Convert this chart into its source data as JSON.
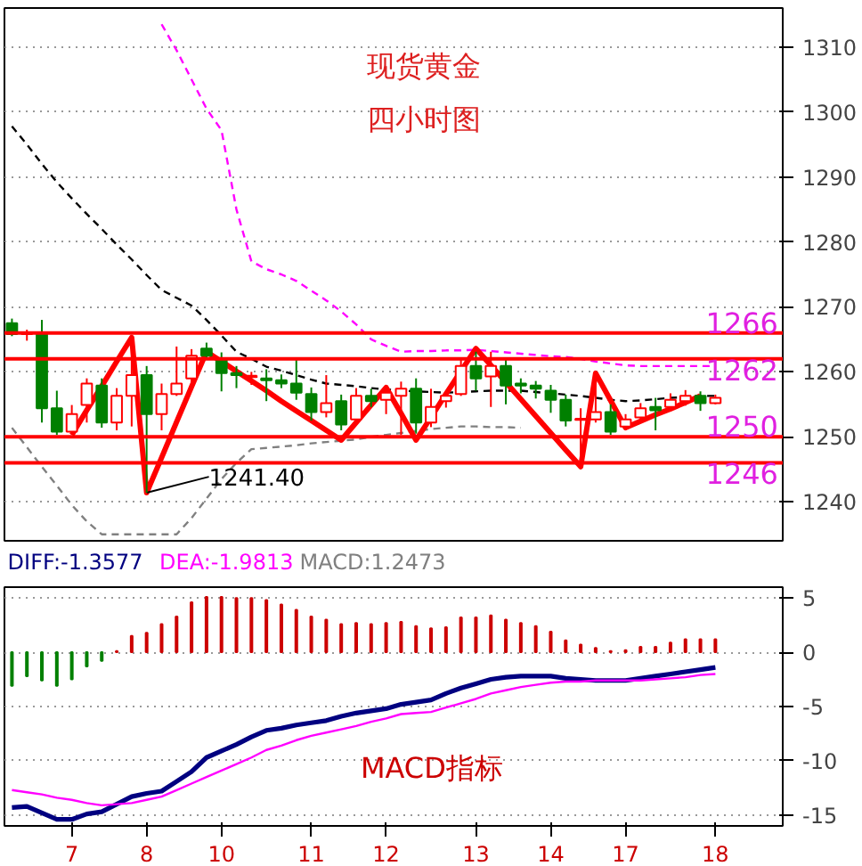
{
  "chart_data": [
    {
      "type": "candlestick",
      "title": "现货黄金",
      "subtitle": "四小时图",
      "categories": [
        null,
        null,
        null,
        null,
        "7",
        null,
        null,
        null,
        null,
        "8",
        null,
        null,
        null,
        null,
        "10",
        null,
        null,
        null,
        null,
        null,
        "11",
        null,
        null,
        null,
        null,
        "12",
        null,
        null,
        null,
        null,
        null,
        "13",
        null,
        null,
        null,
        null,
        "14",
        null,
        null,
        null,
        null,
        "17",
        null,
        null,
        null,
        null,
        null,
        "18"
      ],
      "ohlc": [
        [
          1267.5,
          1268.2,
          1265.5,
          1265.8
        ],
        [
          1265.8,
          1266.5,
          1264.8,
          1266.0
        ],
        [
          1266.1,
          1268.0,
          1252.2,
          1254.4
        ],
        [
          1254.4,
          1257.1,
          1250.3,
          1250.8
        ],
        [
          1250.8,
          1254.9,
          1250.3,
          1253.5
        ],
        [
          1254.9,
          1259.0,
          1252.2,
          1258.2
        ],
        [
          1257.9,
          1259.0,
          1251.4,
          1252.2
        ],
        [
          1252.2,
          1257.5,
          1251.0,
          1256.3
        ],
        [
          1256.3,
          1265.0,
          1251.6,
          1259.5
        ],
        [
          1259.5,
          1260.9,
          1241.4,
          1253.5
        ],
        [
          1253.5,
          1258.2,
          1251.0,
          1256.6
        ],
        [
          1256.6,
          1263.9,
          1256.3,
          1258.2
        ],
        [
          1259.0,
          1263.5,
          1257.5,
          1262.5
        ],
        [
          1263.6,
          1264.5,
          1262.0,
          1262.5
        ],
        [
          1262.0,
          1263.0,
          1257.0,
          1259.8
        ],
        [
          1259.8,
          1260.9,
          1257.5,
          1259.5
        ],
        [
          1259.2,
          1260.0,
          1258.0,
          1259.4
        ],
        [
          1259.0,
          1260.4,
          1255.5,
          1258.7
        ],
        [
          1258.7,
          1259.6,
          1257.5,
          1258.2
        ],
        [
          1258.2,
          1262.0,
          1255.7,
          1256.8
        ],
        [
          1256.6,
          1257.6,
          1252.5,
          1253.8
        ],
        [
          1253.8,
          1259.5,
          1253.0,
          1255.2
        ],
        [
          1255.5,
          1256.5,
          1251.0,
          1251.9
        ],
        [
          1252.7,
          1257.5,
          1252.0,
          1256.3
        ],
        [
          1256.3,
          1257.4,
          1254.6,
          1255.5
        ],
        [
          1255.7,
          1258.0,
          1253.5,
          1256.8
        ],
        [
          1256.3,
          1258.5,
          1250.3,
          1257.4
        ],
        [
          1257.4,
          1259.0,
          1250.5,
          1252.2
        ],
        [
          1252.2,
          1257.4,
          1251.5,
          1254.6
        ],
        [
          1255.5,
          1257.0,
          1254.5,
          1256.3
        ],
        [
          1256.6,
          1262.0,
          1256.3,
          1260.9
        ],
        [
          1260.9,
          1263.1,
          1257.1,
          1259.0
        ],
        [
          1259.3,
          1263.1,
          1254.6,
          1260.9
        ],
        [
          1260.9,
          1262.0,
          1255.0,
          1257.9
        ],
        [
          1258.2,
          1259.0,
          1256.7,
          1257.9
        ],
        [
          1257.9,
          1258.6,
          1255.9,
          1257.4
        ],
        [
          1257.1,
          1258.0,
          1253.7,
          1255.7
        ],
        [
          1255.7,
          1256.5,
          1251.6,
          1252.5
        ],
        [
          1252.6,
          1254.4,
          1246.0,
          1252.8
        ],
        [
          1252.7,
          1259.8,
          1252.2,
          1253.8
        ],
        [
          1253.8,
          1255.0,
          1250.3,
          1250.8
        ],
        [
          1251.6,
          1253.5,
          1251.0,
          1252.7
        ],
        [
          1253.0,
          1255.2,
          1252.5,
          1254.4
        ],
        [
          1254.6,
          1256.0,
          1251.0,
          1254.1
        ],
        [
          1254.6,
          1256.7,
          1253.9,
          1255.7
        ],
        [
          1255.5,
          1257.2,
          1254.8,
          1256.3
        ],
        [
          1256.3,
          1257.0,
          1254.0,
          1255.2
        ],
        [
          1255.2,
          1256.5,
          1255.0,
          1256.0
        ]
      ],
      "series": [
        {
          "type": "line",
          "line_style": "dashed",
          "color": "#000000",
          "values": [
            1297.8,
            1295,
            1292,
            1289.2,
            1286.7,
            1284.3,
            1282,
            1279.6,
            1277.3,
            1274.9,
            1272.6,
            1271.4,
            1270.2,
            1268,
            1265.6,
            1263.1,
            1262,
            1260.8,
            1260.2,
            1259.5,
            1258.8,
            1258.2,
            1258,
            1257.8,
            1257.5,
            1257.3,
            1257.1,
            1257,
            1256.9,
            1256.8,
            1256.9,
            1257,
            1257.1,
            1257.1,
            1257.1,
            1256.9,
            1256.7,
            1256.5,
            1256.3,
            1256,
            1255.7,
            1255.5,
            1255.6,
            1255.8,
            1256,
            1256.1,
            1256.3,
            1256.3
          ]
        },
        {
          "type": "line",
          "line_style": "dashed",
          "color": "#ff00ff",
          "values": [
            null,
            null,
            null,
            null,
            null,
            null,
            null,
            null,
            null,
            null,
            1313.5,
            1309.5,
            1305,
            1300.5,
            1297.2,
            1285,
            1277,
            1275.8,
            1275,
            1274,
            1272.5,
            1271,
            1269.3,
            1267.3,
            1265,
            1264,
            1263.1,
            1263.2,
            1263.2,
            1263.3,
            1263.3,
            1263.4,
            1263.2,
            1263,
            1262.8,
            1262.6,
            1262.4,
            1262.3,
            1262,
            1261.6,
            1261.3,
            1261,
            1260.9,
            1260.9,
            1260.9,
            1260.9,
            1260.9,
            1260.9
          ]
        },
        {
          "type": "line",
          "line_style": "dashed",
          "color": "#808080",
          "values": [
            1251.4,
            1248.4,
            1245.4,
            1242.5,
            1239.5,
            1237,
            1235,
            1235,
            1235,
            1235,
            1235,
            1235,
            1237.5,
            1240.5,
            1243.5,
            1246,
            1248.1,
            1248.3,
            1248.5,
            1248.7,
            1249,
            1249.2,
            1249.4,
            1249.6,
            1250,
            1250.3,
            1250.6,
            1250.9,
            1251.2,
            1251.4,
            1251.6,
            1251.6,
            1251.5,
            1251.5,
            1251.4,
            null,
            null,
            null,
            null,
            null,
            null,
            null,
            null,
            null,
            null,
            null,
            null,
            null
          ]
        },
        {
          "type": "line",
          "line_style": "solid",
          "color": "#ff0000",
          "values": [
            null,
            null,
            null,
            null,
            1250.3,
            1254.1,
            1257.8,
            1261.6,
            1265.3,
            1241.4,
            1246.8,
            1252.3,
            1257.7,
            1263.1,
            1261.6,
            1260.1,
            1258.6,
            1257.1,
            1255.5,
            1254,
            1252.5,
            1251,
            1249.5,
            1252.2,
            1254.9,
            1257.6,
            1253.6,
            1249.5,
            1253,
            1256.6,
            1260.1,
            1263.6,
            1261,
            1258.4,
            1255.8,
            1253.2,
            1250.6,
            1248,
            1245.4,
            1259.8,
            1255.6,
            1251.4,
            1252.4,
            1253.4,
            1254.3,
            1255.3,
            1256.3,
            null
          ]
        }
      ],
      "ref_lines": [
        {
          "axis": "y",
          "value": 1266,
          "label": "1266",
          "color": "#ff0000"
        },
        {
          "axis": "y",
          "value": 1262,
          "label": "1262",
          "color": "#ff0000"
        },
        {
          "axis": "y",
          "value": 1250,
          "label": "1250",
          "color": "#ff0000"
        },
        {
          "axis": "y",
          "value": 1246,
          "label": "1246",
          "color": "#ff0000"
        }
      ],
      "annotations": [
        {
          "text": "1241.40",
          "x": "8",
          "y": 1241.4
        }
      ],
      "ylim": [
        1234,
        1316
      ],
      "yticks": [
        1240,
        1250,
        1260,
        1270,
        1280,
        1290,
        1300,
        1310
      ],
      "grid": "y",
      "tick_labels": "y"
    },
    {
      "type": "bar",
      "categories": [
        null,
        null,
        null,
        null,
        "7",
        null,
        null,
        null,
        null,
        "8",
        null,
        null,
        null,
        null,
        "10",
        null,
        null,
        null,
        null,
        null,
        "11",
        null,
        null,
        null,
        null,
        "12",
        null,
        null,
        null,
        null,
        null,
        "13",
        null,
        null,
        null,
        null,
        "14",
        null,
        null,
        null,
        null,
        "17",
        null,
        null,
        null,
        null,
        null,
        "18"
      ],
      "series": [
        {
          "name": "DIFF:-1.3577",
          "type": "line",
          "color": "#000080",
          "values": [
            -14.3,
            -14.2,
            -14.8,
            -15.4,
            -15.4,
            -14.9,
            -14.7,
            -14,
            -13.3,
            -13,
            -12.8,
            -11.9,
            -11,
            -9.7,
            -9.1,
            -8.5,
            -7.8,
            -7.2,
            -7,
            -6.7,
            -6.5,
            -6.3,
            -5.9,
            -5.6,
            -5.4,
            -5.2,
            -4.8,
            -4.6,
            -4.4,
            -3.8,
            -3.3,
            -2.9,
            -2.5,
            -2.3,
            -2.2,
            -2.2,
            -2.2,
            -2.4,
            -2.5,
            -2.6,
            -2.6,
            -2.6,
            -2.4,
            -2.2,
            -2,
            -1.8,
            -1.6,
            -1.4
          ]
        },
        {
          "name": "DEA:-1.9813",
          "type": "line",
          "color": "#ff00ff",
          "values": [
            -12.7,
            -12.9,
            -13.1,
            -13.4,
            -13.6,
            -13.9,
            -14.1,
            -14,
            -13.9,
            -13.6,
            -13.3,
            -12.7,
            -12.1,
            -11.5,
            -10.9,
            -10.3,
            -9.7,
            -9,
            -8.6,
            -8.1,
            -7.7,
            -7.4,
            -7.1,
            -6.8,
            -6.4,
            -6.1,
            -5.7,
            -5.6,
            -5.5,
            -5.1,
            -4.7,
            -4.3,
            -3.8,
            -3.5,
            -3.2,
            -3,
            -2.8,
            -2.7,
            -2.7,
            -2.6,
            -2.6,
            -2.6,
            -2.6,
            -2.5,
            -2.4,
            -2.3,
            -2.1,
            -2.0
          ]
        },
        {
          "name": "MACD:1.2473",
          "type": "bar",
          "colors": [
            "#008000",
            "#008000",
            "#008000",
            "#008000",
            "#008000",
            "#008000",
            "#008000",
            "#cc0000",
            "#cc0000",
            "#cc0000",
            "#cc0000",
            "#cc0000",
            "#cc0000",
            "#cc0000",
            "#cc0000",
            "#cc0000",
            "#cc0000",
            "#cc0000",
            "#cc0000",
            "#cc0000",
            "#cc0000",
            "#cc0000",
            "#cc0000",
            "#cc0000",
            "#cc0000",
            "#cc0000",
            "#cc0000",
            "#cc0000",
            "#cc0000",
            "#cc0000",
            "#cc0000",
            "#cc0000",
            "#cc0000",
            "#cc0000",
            "#cc0000",
            "#cc0000",
            "#cc0000",
            "#cc0000",
            "#cc0000",
            "#cc0000",
            "#cc0000",
            "#cc0000",
            "#cc0000",
            "#cc0000",
            "#cc0000",
            "#cc0000",
            "#cc0000",
            "#cc0000"
          ],
          "values": [
            -3.1,
            -2.2,
            -2.6,
            -3.1,
            -2.5,
            -1.3,
            -0.8,
            0.1,
            1.5,
            1.8,
            2.6,
            3.3,
            4.6,
            5.1,
            5.1,
            5.0,
            5.0,
            4.8,
            4.4,
            3.9,
            3.3,
            3.0,
            2.6,
            2.7,
            2.6,
            2.7,
            2.8,
            2.4,
            2.2,
            2.3,
            3.2,
            3.2,
            3.4,
            3.0,
            2.7,
            2.4,
            1.9,
            1.1,
            0.7,
            0.4,
            0.1,
            0.2,
            0.5,
            0.5,
            0.9,
            1.2,
            1.2,
            1.2
          ]
        }
      ],
      "annotations": [
        "MACD指标"
      ],
      "ylim": [
        -16,
        6
      ],
      "yticks": [
        -15,
        -10,
        -5,
        0,
        5
      ],
      "grid": "y"
    }
  ]
}
